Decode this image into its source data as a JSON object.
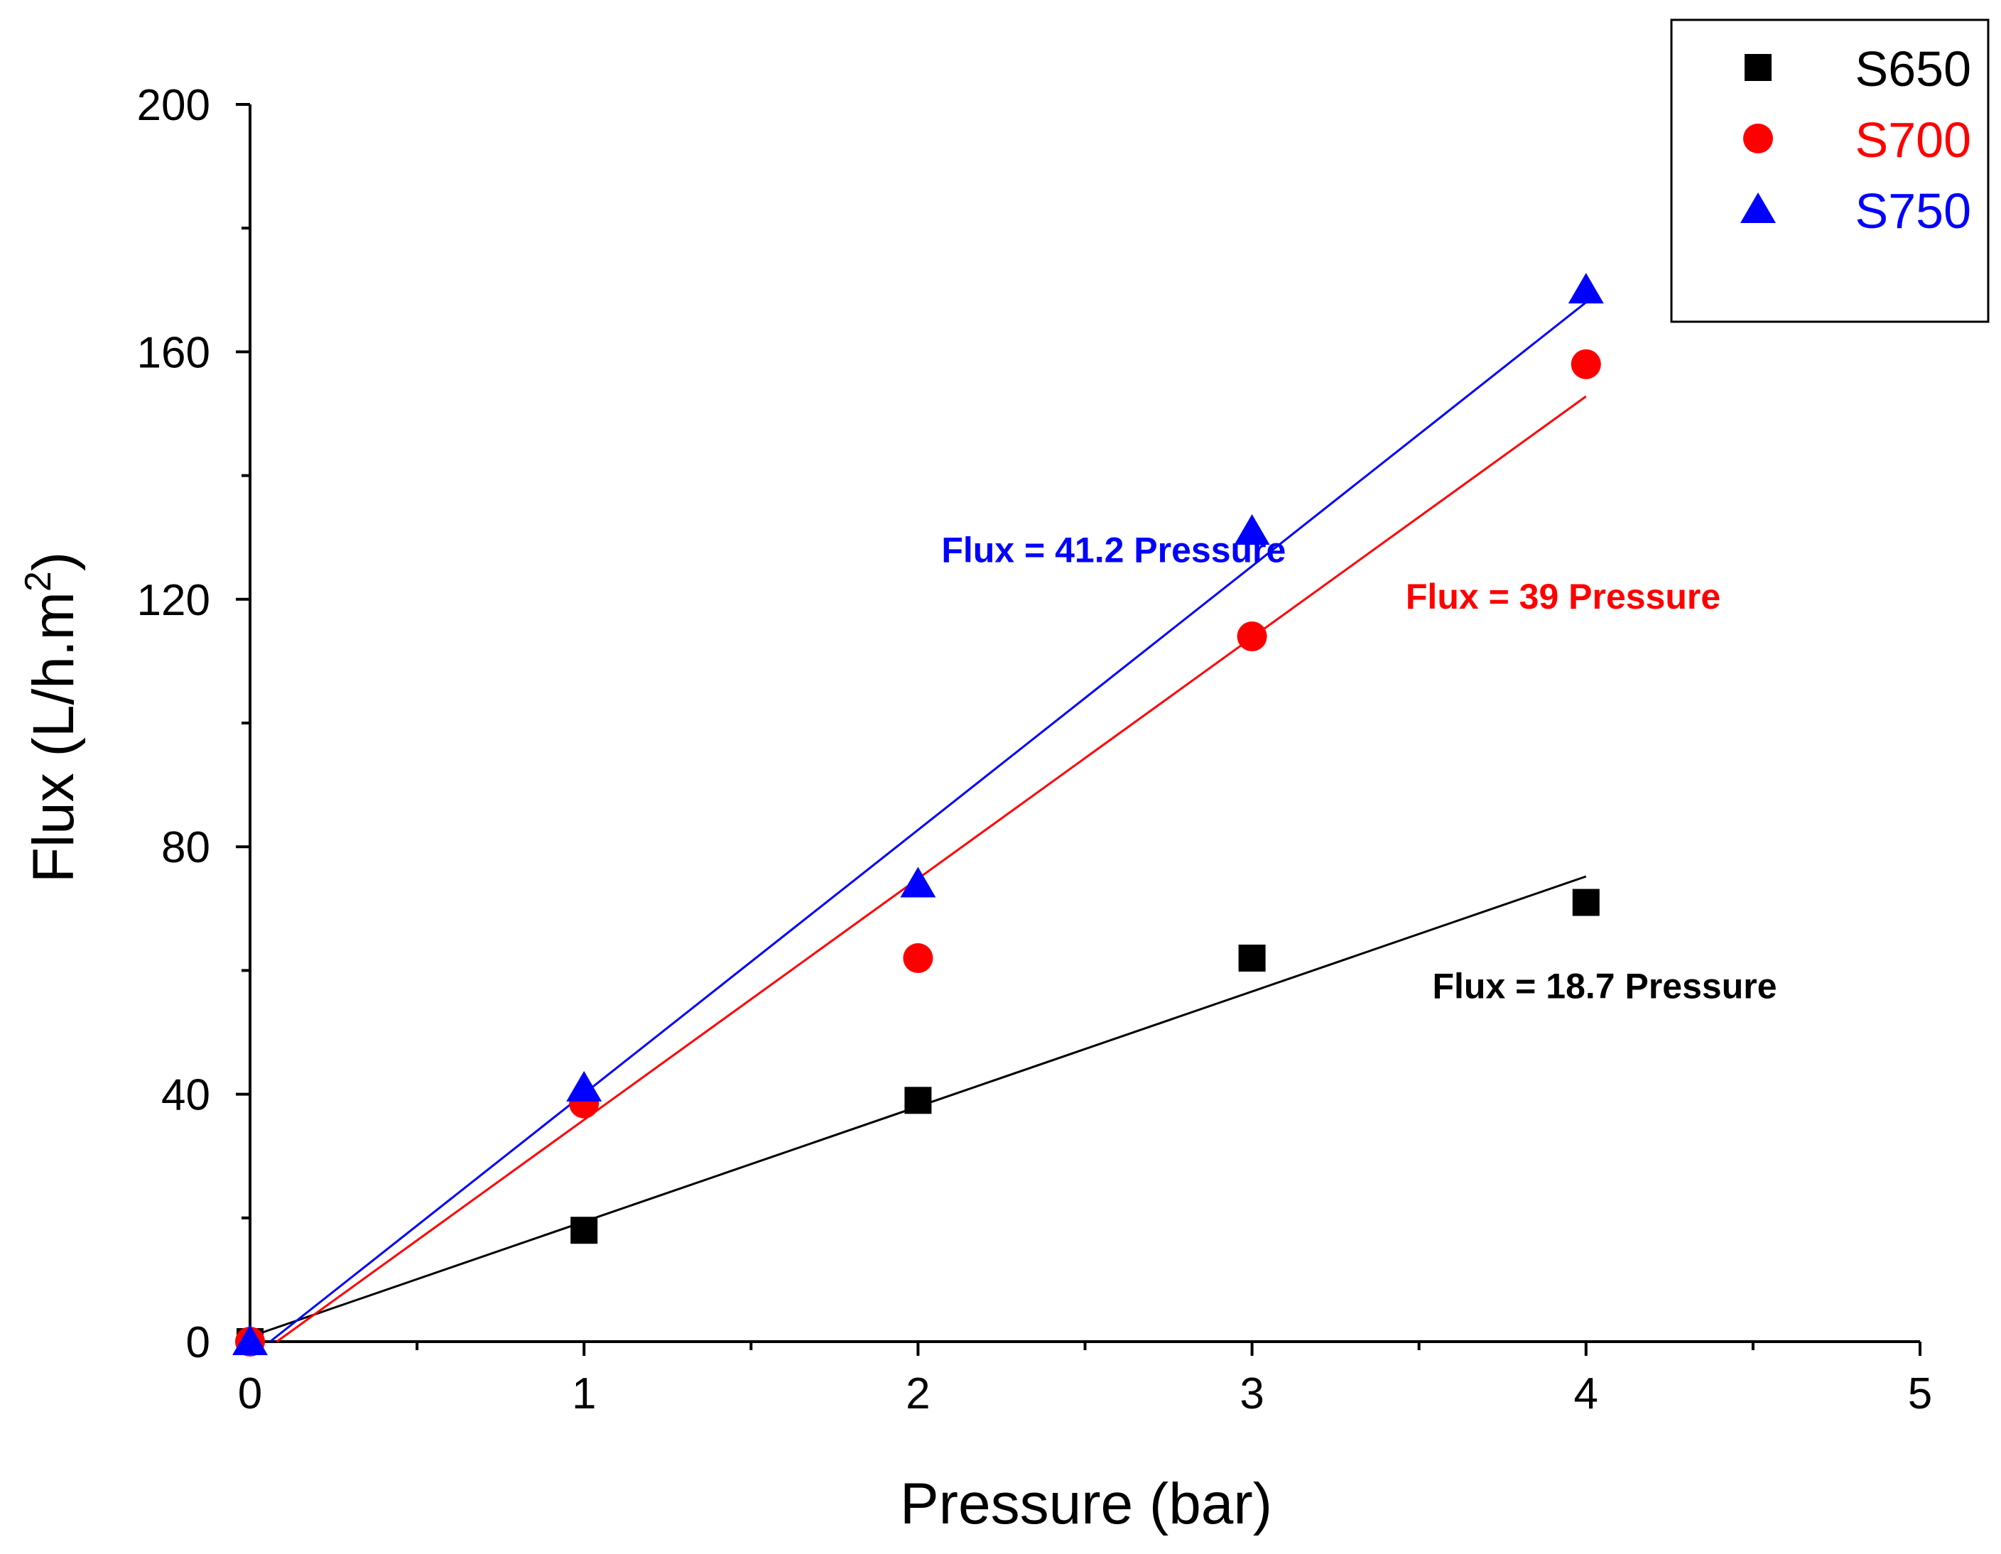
{
  "chart_data": {
    "type": "scatter",
    "title": "",
    "xlabel": "Pressure (bar)",
    "ylabel_main": "Flux (L/h.m",
    "ylabel_sup": "2",
    "ylabel_close": ")",
    "xlim": [
      0,
      5
    ],
    "ylim": [
      0,
      200
    ],
    "x_ticks": [
      0,
      1,
      2,
      3,
      4,
      5
    ],
    "x_minor_ticks": [
      0.5,
      1.5,
      2.5,
      3.5,
      4.5
    ],
    "y_ticks": [
      0,
      40,
      80,
      120,
      160,
      200
    ],
    "y_minor_ticks": [
      20,
      60,
      100,
      140,
      180
    ],
    "grid": false,
    "legend_position": "top-right",
    "series": [
      {
        "name": "S650",
        "color": "#000000",
        "marker": "square",
        "x": [
          0,
          1,
          2,
          3,
          4
        ],
        "y": [
          0,
          18,
          39,
          62,
          71
        ],
        "fit": {
          "x": [
            0,
            4
          ],
          "y": [
            0.8,
            75.2
          ]
        },
        "annotation": "Flux = 18.7 Pressure",
        "annotation_at": [
          3.54,
          55.5
        ]
      },
      {
        "name": "S700",
        "color": "#ff0000",
        "marker": "circle",
        "x": [
          0,
          1,
          2,
          3,
          4
        ],
        "y": [
          0,
          38.5,
          62,
          114,
          158
        ],
        "fit": {
          "x": [
            0.08,
            4
          ],
          "y": [
            0,
            152.8
          ]
        },
        "annotation": "Flux = 39 Pressure",
        "annotation_at": [
          3.46,
          118.5
        ]
      },
      {
        "name": "S750",
        "color": "#0000ff",
        "marker": "triangle",
        "x": [
          0,
          1,
          2,
          3,
          4
        ],
        "y": [
          0,
          41,
          74,
          131,
          170
        ],
        "fit": {
          "x": [
            0.06,
            4
          ],
          "y": [
            0,
            168
          ]
        },
        "annotation": "Flux = 41.2 Pressure",
        "annotation_at": [
          2.07,
          126
        ]
      }
    ]
  }
}
